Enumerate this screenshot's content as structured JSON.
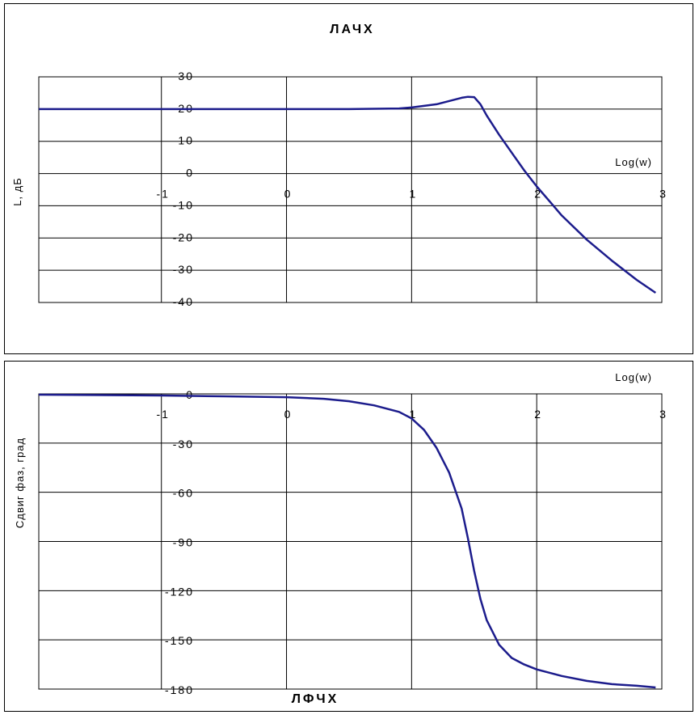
{
  "chart_data": [
    {
      "type": "line",
      "title": "ЛАЧХ",
      "xlabel": "Log(w)",
      "ylabel": "L, дБ",
      "xlim": [
        -1.98,
        3
      ],
      "ylim": [
        -40,
        30
      ],
      "x_ticks": [
        "-1",
        "0",
        "1",
        "2",
        "3"
      ],
      "y_ticks": [
        "30",
        "20",
        "10",
        "0",
        "-10",
        "-20",
        "-30",
        "-40"
      ],
      "grid": true,
      "series_color": "#1c1c8c",
      "series": [
        {
          "x": [
            -1.98,
            -1,
            0,
            0.5,
            0.9,
            1.0,
            1.1,
            1.2,
            1.3,
            1.4,
            1.45,
            1.5,
            1.55,
            1.6,
            1.7,
            1.8,
            1.9,
            2.0,
            2.1,
            2.2,
            2.4,
            2.6,
            2.8,
            2.95
          ],
          "y": [
            20,
            20,
            20,
            20,
            20.2,
            20.5,
            21,
            21.5,
            22.5,
            23.5,
            23.8,
            23.7,
            21.5,
            18,
            12,
            6.5,
            1,
            -4,
            -8.5,
            -13,
            -20.5,
            -27,
            -33,
            -37
          ]
        }
      ]
    },
    {
      "type": "line",
      "title": "ЛФЧХ",
      "xlabel": "Log(w)",
      "ylabel": "Сдвиг фаз, град",
      "xlim": [
        -1.98,
        3
      ],
      "ylim": [
        -180,
        0
      ],
      "x_ticks": [
        "-1",
        "0",
        "1",
        "2",
        "3"
      ],
      "y_ticks": [
        "0",
        "-30",
        "-60",
        "-90",
        "-120",
        "-150",
        "-180"
      ],
      "grid": true,
      "series_color": "#1c1c8c",
      "series": [
        {
          "x": [
            -1.98,
            -1,
            -0.5,
            0,
            0.3,
            0.5,
            0.7,
            0.9,
            1.0,
            1.1,
            1.2,
            1.3,
            1.4,
            1.45,
            1.5,
            1.55,
            1.6,
            1.7,
            1.8,
            1.9,
            2.0,
            2.2,
            2.4,
            2.6,
            2.8,
            2.95
          ],
          "y": [
            -0.5,
            -1,
            -1.5,
            -2,
            -3,
            -4.5,
            -7,
            -11,
            -15,
            -22,
            -33,
            -48,
            -70,
            -88,
            -108,
            -125,
            -138,
            -153,
            -161,
            -165,
            -168,
            -172,
            -175,
            -177,
            -178,
            -179
          ]
        }
      ]
    }
  ]
}
